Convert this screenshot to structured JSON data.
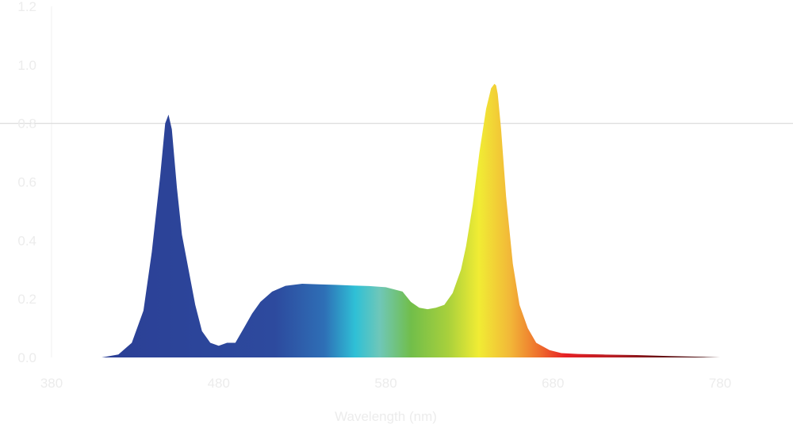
{
  "chart_data": {
    "type": "area",
    "title": "",
    "xlabel": "Wavelength (nm)",
    "ylabel": "",
    "xlim": [
      380,
      780
    ],
    "ylim": [
      0,
      1.2
    ],
    "x_ticks": [
      "380",
      "480",
      "580",
      "680",
      "780"
    ],
    "y_ticks": [
      "0.0",
      "0.2",
      "0.4",
      "0.6",
      "0.8",
      "1.0",
      "1.2"
    ],
    "reference_line_y": 0.8,
    "fill": "visible-spectrum gradient (blue → cyan → green → yellow → orange → red → dark red)",
    "series": [
      {
        "x": [
          410,
          420,
          428,
          435,
          440,
          445,
          448,
          450,
          452,
          455,
          458,
          462,
          466,
          470,
          475,
          480,
          485,
          490,
          495,
          500,
          505,
          512,
          520,
          530,
          540,
          550,
          560,
          570,
          580,
          590,
          595,
          600,
          605,
          610,
          615,
          620,
          625,
          628,
          632,
          636,
          640,
          643,
          645,
          646,
          647,
          649,
          652,
          656,
          660,
          665,
          670,
          678,
          685,
          695,
          710,
          730,
          750,
          770,
          780
        ],
        "y": [
          0.0,
          0.01,
          0.05,
          0.16,
          0.36,
          0.62,
          0.8,
          0.83,
          0.78,
          0.58,
          0.42,
          0.3,
          0.18,
          0.09,
          0.05,
          0.04,
          0.05,
          0.05,
          0.1,
          0.15,
          0.19,
          0.225,
          0.245,
          0.252,
          0.25,
          0.248,
          0.246,
          0.244,
          0.24,
          0.225,
          0.19,
          0.17,
          0.165,
          0.17,
          0.18,
          0.22,
          0.3,
          0.38,
          0.52,
          0.7,
          0.85,
          0.92,
          0.935,
          0.93,
          0.9,
          0.78,
          0.55,
          0.32,
          0.18,
          0.1,
          0.05,
          0.025,
          0.015,
          0.012,
          0.01,
          0.008,
          0.005,
          0.002,
          0.0
        ]
      }
    ]
  }
}
